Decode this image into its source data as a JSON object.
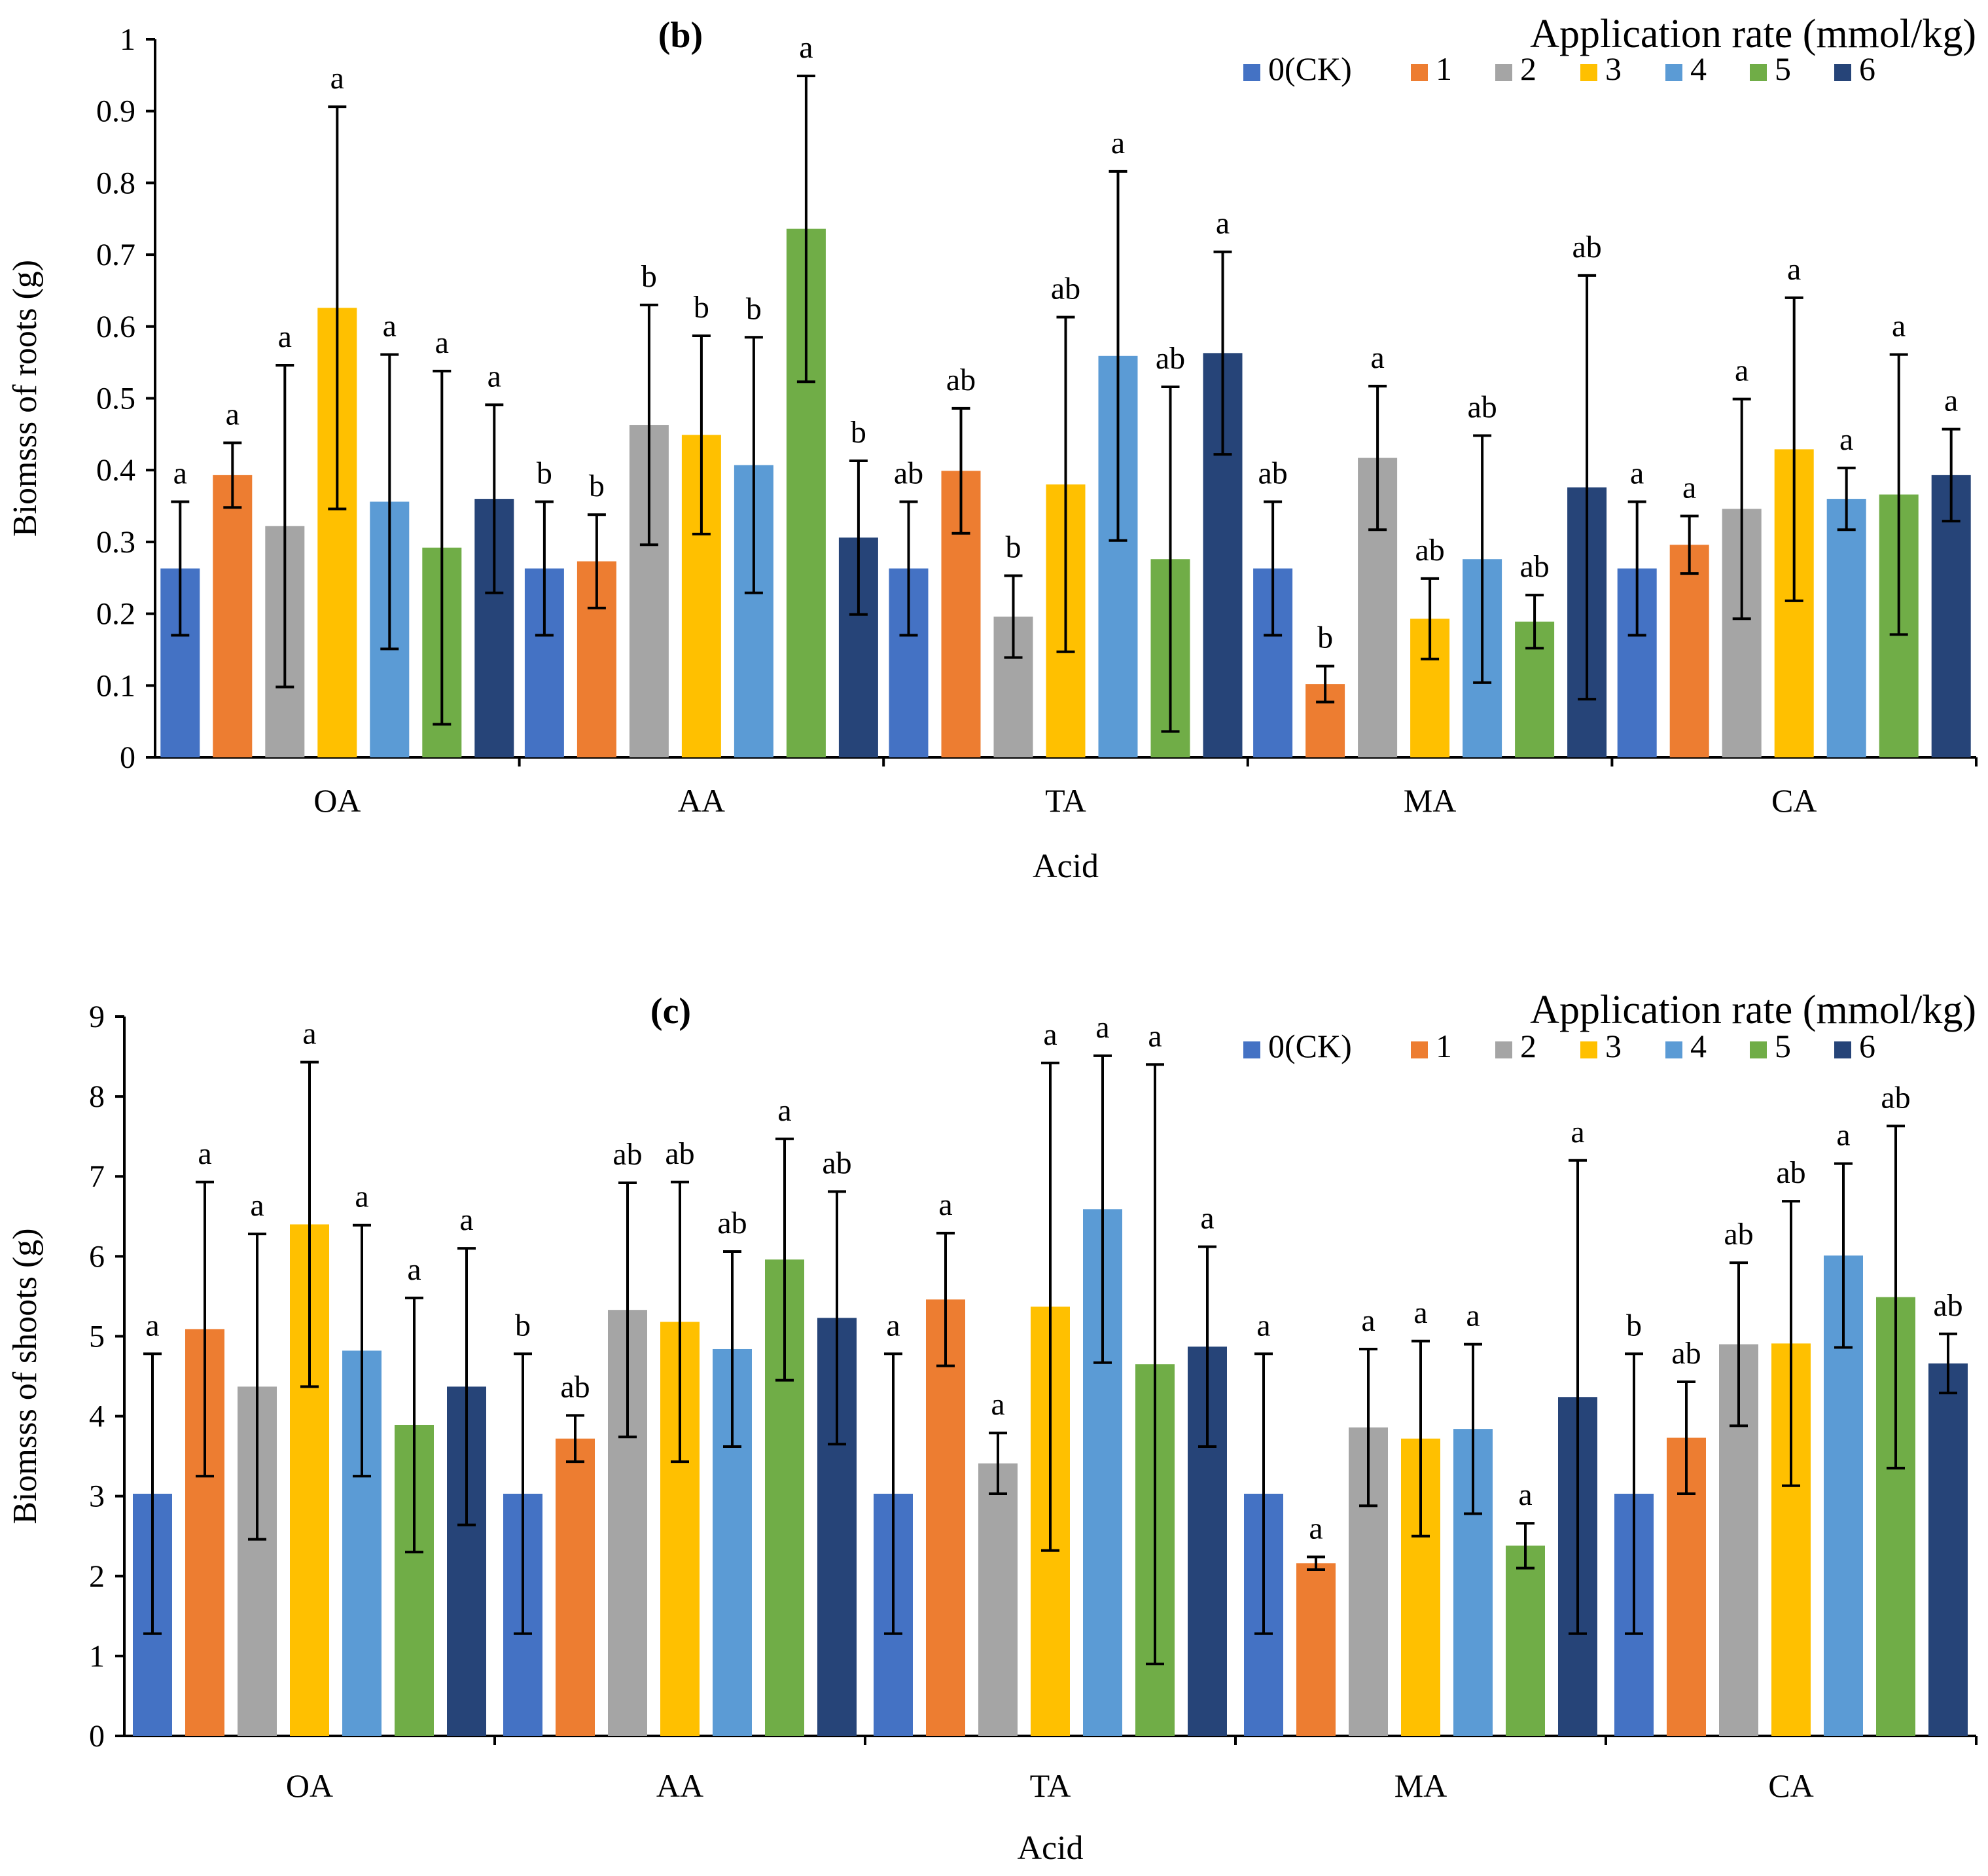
{
  "figure": {
    "legend_title_b": "Application rate (mmol/kg)",
    "legend_title_c": "Application rate  (mmol/kg)"
  },
  "series_colors": [
    "#4472C4",
    "#ED7D31",
    "#A5A5A5",
    "#FFC000",
    "#5B9BD5",
    "#70AD47",
    "#264478"
  ],
  "chart_data": [
    {
      "type": "bar",
      "panel_label": "b",
      "title": "(b)",
      "xlabel": "Acid",
      "ylabel": "Biomsss of roots (g)",
      "categories": [
        "OA",
        "AA",
        "TA",
        "MA",
        "CA"
      ],
      "ylim": [
        0,
        1
      ],
      "yticks": [
        0,
        0.1,
        0.2,
        0.3,
        0.4,
        0.5,
        0.6,
        0.7,
        0.8,
        0.9,
        1
      ],
      "ytick_labels": [
        "0",
        "0.1",
        "0.2",
        "0.3",
        "0.4",
        "0.5",
        "0.6",
        "0.7",
        "0.8",
        "0.9",
        "1"
      ],
      "legend_title": "Application rate (mmol/kg)",
      "series": [
        {
          "name": "0(CK)",
          "values": [
            0.263,
            0.263,
            0.263,
            0.263,
            0.263
          ],
          "errors": [
            0.093,
            0.093,
            0.093,
            0.093,
            0.093
          ],
          "labels": [
            "a",
            "b",
            "ab",
            "ab",
            "a"
          ]
        },
        {
          "name": "1",
          "values": [
            0.393,
            0.273,
            0.399,
            0.102,
            0.296
          ],
          "errors": [
            0.045,
            0.065,
            0.087,
            0.025,
            0.04
          ],
          "labels": [
            "a",
            "b",
            "ab",
            "b",
            "a"
          ]
        },
        {
          "name": "2",
          "values": [
            0.322,
            0.463,
            0.196,
            0.417,
            0.346
          ],
          "errors": [
            0.224,
            0.167,
            0.057,
            0.1,
            0.153
          ],
          "labels": [
            "a",
            "b",
            "b",
            "a",
            "a"
          ]
        },
        {
          "name": "3",
          "values": [
            0.626,
            0.449,
            0.38,
            0.193,
            0.429
          ],
          "errors": [
            0.28,
            0.138,
            0.233,
            0.056,
            0.211
          ],
          "labels": [
            "a",
            "b",
            "ab",
            "ab",
            "a"
          ]
        },
        {
          "name": "4",
          "values": [
            0.356,
            0.407,
            0.559,
            0.276,
            0.36
          ],
          "errors": [
            0.205,
            0.178,
            0.257,
            0.172,
            0.043
          ],
          "labels": [
            "a",
            "b",
            "a",
            "ab",
            "a"
          ]
        },
        {
          "name": "5",
          "values": [
            0.292,
            0.736,
            0.276,
            0.189,
            0.366
          ],
          "errors": [
            0.246,
            0.213,
            0.24,
            0.037,
            0.195
          ],
          "labels": [
            "a",
            "a",
            "ab",
            "ab",
            "a"
          ]
        },
        {
          "name": "6",
          "values": [
            0.36,
            0.306,
            0.563,
            0.376,
            0.393
          ],
          "errors": [
            0.131,
            0.107,
            0.141,
            0.295,
            0.064
          ],
          "labels": [
            "a",
            "b",
            "a",
            "ab",
            "a"
          ]
        }
      ]
    },
    {
      "type": "bar",
      "panel_label": "c",
      "title": "(c)",
      "xlabel": "Acid",
      "ylabel": "Biomsss of shoots (g)",
      "categories": [
        "OA",
        "AA",
        "TA",
        "MA",
        "CA"
      ],
      "ylim": [
        0,
        9
      ],
      "yticks": [
        0,
        1,
        2,
        3,
        4,
        5,
        6,
        7,
        8,
        9
      ],
      "ytick_labels": [
        "0",
        "1",
        "2",
        "3",
        "4",
        "5",
        "6",
        "7",
        "8",
        "9"
      ],
      "legend_title": "Application rate  (mmol/kg)",
      "series": [
        {
          "name": "0(CK)",
          "values": [
            3.03,
            3.03,
            3.03,
            3.03,
            3.03
          ],
          "errors": [
            1.75,
            1.75,
            1.75,
            1.75,
            1.75
          ],
          "labels": [
            "a",
            "b",
            "a",
            "a",
            "b"
          ]
        },
        {
          "name": "1",
          "values": [
            5.09,
            3.72,
            5.46,
            2.16,
            3.73
          ],
          "errors": [
            1.84,
            0.29,
            0.83,
            0.08,
            0.7
          ],
          "labels": [
            "a",
            "ab",
            "a",
            "a",
            "ab"
          ]
        },
        {
          "name": "2",
          "values": [
            4.37,
            5.33,
            3.41,
            3.86,
            4.9
          ],
          "errors": [
            1.91,
            1.59,
            0.38,
            0.98,
            1.02
          ],
          "labels": [
            "a",
            "ab",
            "a",
            "a",
            "ab"
          ]
        },
        {
          "name": "3",
          "values": [
            6.4,
            5.18,
            5.37,
            3.72,
            4.91
          ],
          "errors": [
            2.03,
            1.75,
            3.05,
            1.22,
            1.78
          ],
          "labels": [
            "a",
            "ab",
            "a",
            "a",
            "ab"
          ]
        },
        {
          "name": "4",
          "values": [
            4.82,
            4.84,
            6.59,
            3.84,
            6.01
          ],
          "errors": [
            1.57,
            1.22,
            1.92,
            1.06,
            1.15
          ],
          "labels": [
            "a",
            "ab",
            "a",
            "a",
            "a"
          ]
        },
        {
          "name": "5",
          "values": [
            3.89,
            5.96,
            4.65,
            2.38,
            5.49
          ],
          "errors": [
            1.59,
            1.51,
            3.75,
            0.28,
            2.14
          ],
          "labels": [
            "a",
            "a",
            "a",
            "a",
            "ab"
          ]
        },
        {
          "name": "6",
          "values": [
            4.37,
            5.23,
            4.87,
            4.24,
            4.66
          ],
          "errors": [
            1.73,
            1.58,
            1.25,
            2.96,
            0.37
          ],
          "labels": [
            "a",
            "ab",
            "a",
            "a",
            "ab"
          ]
        }
      ]
    }
  ]
}
